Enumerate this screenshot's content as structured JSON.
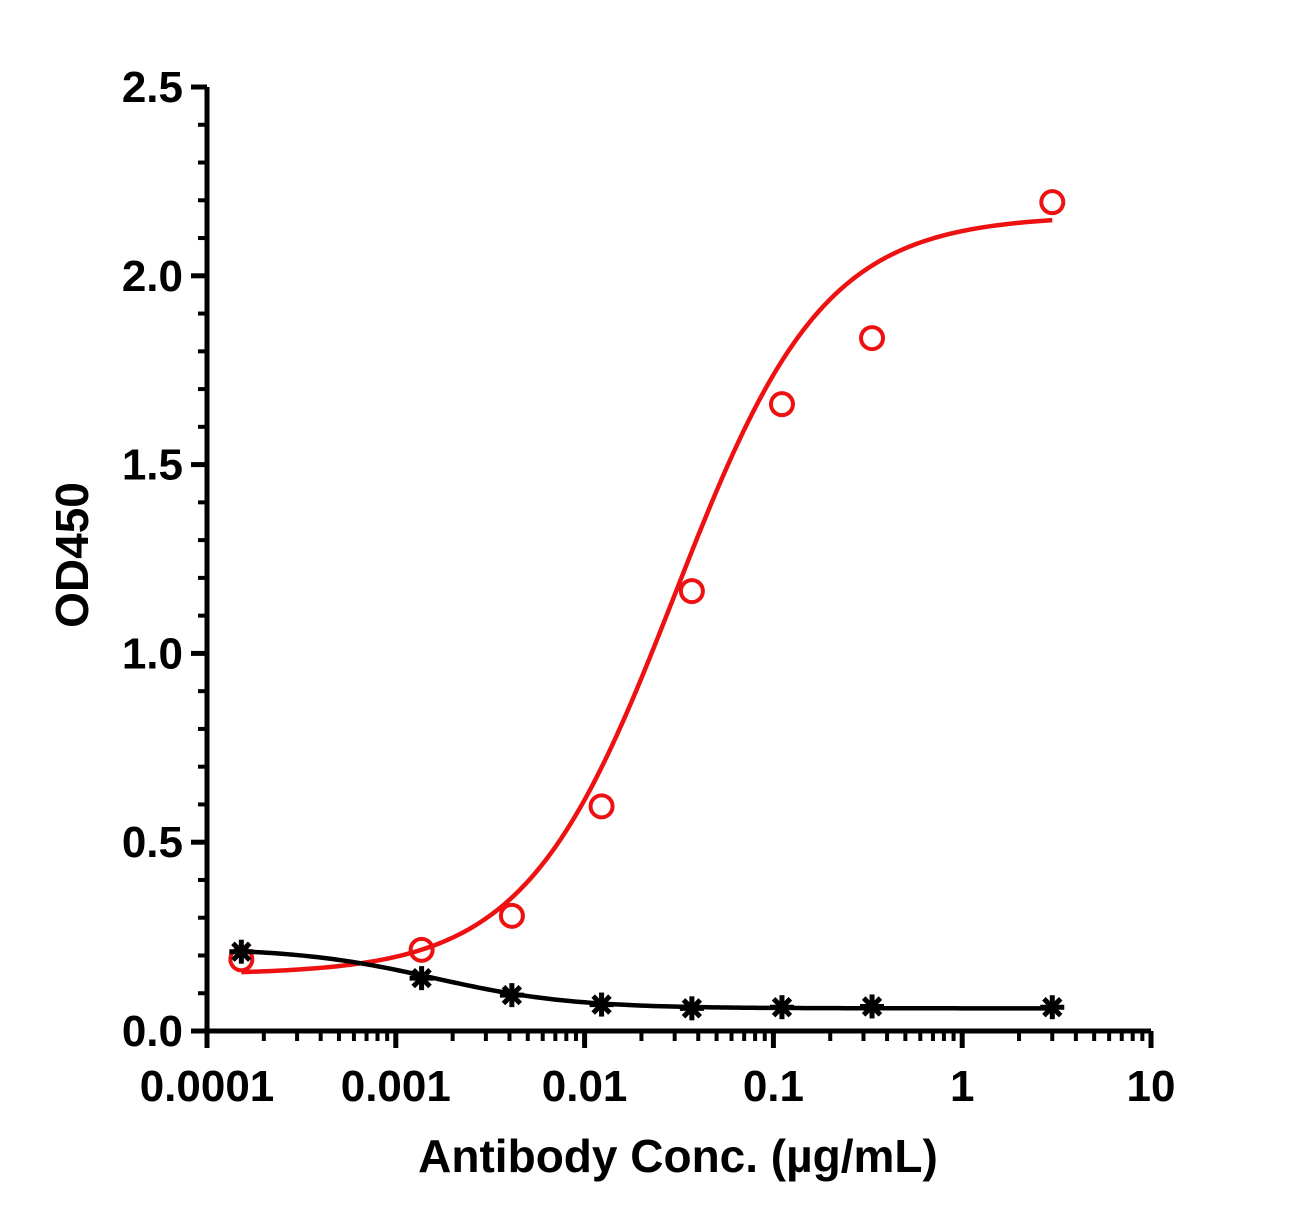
{
  "chart_data": {
    "type": "scatter",
    "title": "",
    "xlabel": "Antibody Conc. (µg/mL)",
    "ylabel": "OD450",
    "x_scale": "log",
    "xlim": [
      0.0001,
      10
    ],
    "ylim": [
      0,
      2.5
    ],
    "grid": false,
    "x_ticks": [
      {
        "value": 0.0001,
        "label": "0.0001"
      },
      {
        "value": 0.001,
        "label": "0.001"
      },
      {
        "value": 0.01,
        "label": "0.01"
      },
      {
        "value": 0.1,
        "label": "0.1"
      },
      {
        "value": 1,
        "label": "1"
      },
      {
        "value": 10,
        "label": "10"
      }
    ],
    "y_ticks": [
      {
        "value": 0,
        "label": "0.0"
      },
      {
        "value": 0.5,
        "label": "0.5"
      },
      {
        "value": 1.0,
        "label": "1.0"
      },
      {
        "value": 1.5,
        "label": "1.5"
      },
      {
        "value": 2.0,
        "label": "2.0"
      },
      {
        "value": 2.5,
        "label": "2.5"
      }
    ],
    "series": [
      {
        "marker": "circle-open",
        "color": "#ee1111",
        "points": [
          {
            "x": 0.000152,
            "y": 0.19
          },
          {
            "x": 0.00137,
            "y": 0.215
          },
          {
            "x": 0.00412,
            "y": 0.305
          },
          {
            "x": 0.0123,
            "y": 0.595
          },
          {
            "x": 0.037,
            "y": 1.165
          },
          {
            "x": 0.111,
            "y": 1.66
          },
          {
            "x": 0.333,
            "y": 1.835
          },
          {
            "x": 3.0,
            "y": 2.195
          }
        ],
        "fit": {
          "bottom": 0.15,
          "top": 2.16,
          "ec50": 0.03,
          "hill": 1.1
        }
      },
      {
        "marker": "asterisk",
        "color": "#000000",
        "points": [
          {
            "x": 0.000152,
            "y": 0.21
          },
          {
            "x": 0.00137,
            "y": 0.14
          },
          {
            "x": 0.00412,
            "y": 0.095
          },
          {
            "x": 0.0123,
            "y": 0.07
          },
          {
            "x": 0.037,
            "y": 0.06
          },
          {
            "x": 0.111,
            "y": 0.063
          },
          {
            "x": 0.333,
            "y": 0.065
          },
          {
            "x": 3.0,
            "y": 0.063
          }
        ],
        "fit": {
          "bottom": 0.06,
          "top": 0.22,
          "ec50": 0.0016,
          "hill": -1.2
        }
      }
    ]
  }
}
